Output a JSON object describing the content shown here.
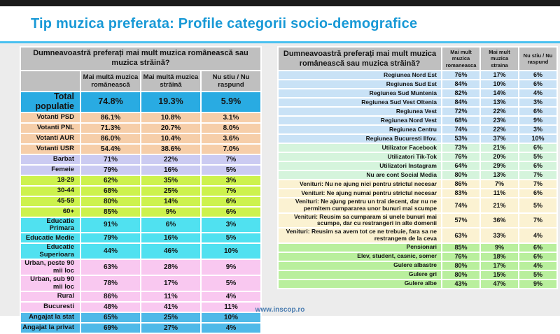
{
  "title": "Tip muzica preferata: Profile categorii socio-demografice",
  "footer": {
    "url": "www.inscop.ro"
  },
  "colors": {
    "title_blue": "#1899d6",
    "underline_cyan": "#49c1f0",
    "header_gray": "#bfbfbf",
    "total_row_blue": "#29abe2"
  },
  "chart_data": [
    {
      "type": "table",
      "name": "left",
      "question": "Dumneavoastră preferați mai mult muzica românească sau muzica străină?",
      "columns": [
        "Mai multă muzica românească",
        "Mai multă muzica străină",
        "Nu stiu / Nu raspund"
      ],
      "groups": [
        {
          "color": "#29abe2",
          "rows": [
            {
              "label": "Total populatie",
              "values": [
                "74.8%",
                "19.3%",
                "5.9%"
              ]
            }
          ]
        },
        {
          "color": "#f6cea9",
          "rows": [
            {
              "label": "Votanti PSD",
              "values": [
                "86.1%",
                "10.8%",
                "3.1%"
              ]
            },
            {
              "label": "Votanti PNL",
              "values": [
                "71.3%",
                "20.7%",
                "8.0%"
              ]
            },
            {
              "label": "Votanti AUR",
              "values": [
                "86.0%",
                "10.4%",
                "3.6%"
              ]
            },
            {
              "label": "Votanti USR",
              "values": [
                "54.4%",
                "38.6%",
                "7.0%"
              ]
            }
          ]
        },
        {
          "color": "#cbcbf2",
          "rows": [
            {
              "label": "Barbat",
              "values": [
                "71%",
                "22%",
                "7%"
              ]
            },
            {
              "label": "Femeie",
              "values": [
                "79%",
                "16%",
                "5%"
              ]
            }
          ]
        },
        {
          "color": "#cdf24d",
          "rows": [
            {
              "label": "18-29",
              "values": [
                "62%",
                "35%",
                "3%"
              ]
            },
            {
              "label": "30-44",
              "values": [
                "68%",
                "25%",
                "7%"
              ]
            },
            {
              "label": "45-59",
              "values": [
                "80%",
                "14%",
                "6%"
              ]
            },
            {
              "label": "60+",
              "values": [
                "85%",
                "9%",
                "6%"
              ]
            }
          ]
        },
        {
          "color": "#50e1f0",
          "rows": [
            {
              "label": "Educatie Primara",
              "values": [
                "91%",
                "6%",
                "3%"
              ]
            },
            {
              "label": "Educatie Medie",
              "values": [
                "79%",
                "16%",
                "5%"
              ]
            },
            {
              "label": "Educatie Superioara",
              "values": [
                "44%",
                "46%",
                "10%"
              ]
            }
          ]
        },
        {
          "color": "#f9c8f0",
          "rows": [
            {
              "label": "Urban, peste 90 mii loc",
              "values": [
                "63%",
                "28%",
                "9%"
              ]
            },
            {
              "label": "Urban, sub 90 mii loc",
              "values": [
                "78%",
                "17%",
                "5%"
              ]
            },
            {
              "label": "Rural",
              "values": [
                "86%",
                "11%",
                "4%"
              ]
            },
            {
              "label": "Bucuresti",
              "values": [
                "48%",
                "41%",
                "11%"
              ]
            }
          ]
        },
        {
          "color": "#4fb9e8",
          "rows": [
            {
              "label": "Angajat la stat",
              "values": [
                "65%",
                "25%",
                "10%"
              ]
            },
            {
              "label": "Angajat la privat",
              "values": [
                "69%",
                "27%",
                "4%"
              ]
            }
          ]
        }
      ]
    },
    {
      "type": "table",
      "name": "right",
      "question": "Dumneavoastră preferați mai mult muzica românească sau muzica străină?",
      "columns": [
        "Mai mult muzica romaneasca",
        "Mai mult muzica straina",
        "Nu stiu / Nu raspund"
      ],
      "groups": [
        {
          "color": "#c9e2f6",
          "rows": [
            {
              "label": "Regiunea Nord Est",
              "values": [
                "76%",
                "17%",
                "6%"
              ]
            },
            {
              "label": "Regiunea Sud Est",
              "values": [
                "84%",
                "10%",
                "6%"
              ]
            },
            {
              "label": "Regiunea Sud Muntenia",
              "values": [
                "82%",
                "14%",
                "4%"
              ]
            },
            {
              "label": "Regiunea Sud Vest Oltenia",
              "values": [
                "84%",
                "13%",
                "3%"
              ]
            },
            {
              "label": "Regiunea Vest",
              "values": [
                "72%",
                "22%",
                "6%"
              ]
            },
            {
              "label": "Regiunea Nord Vest",
              "values": [
                "68%",
                "23%",
                "9%"
              ]
            },
            {
              "label": "Regiunea Centru",
              "values": [
                "74%",
                "22%",
                "3%"
              ]
            },
            {
              "label": "Regiunea Bucuresti Ilfov.",
              "values": [
                "53%",
                "37%",
                "10%"
              ]
            }
          ]
        },
        {
          "color": "#d5f4dc",
          "rows": [
            {
              "label": "Utilizator Facebook",
              "values": [
                "73%",
                "21%",
                "6%"
              ]
            },
            {
              "label": "Utilizatori Tik-Tok",
              "values": [
                "76%",
                "20%",
                "5%"
              ]
            },
            {
              "label": "Utilizatori Instagram",
              "values": [
                "64%",
                "29%",
                "6%"
              ]
            },
            {
              "label": "Nu are cont Social Media",
              "values": [
                "80%",
                "13%",
                "7%"
              ]
            }
          ]
        },
        {
          "color": "#fbf2d2",
          "rows": [
            {
              "label": "Venituri: Nu ne ajung nici pentru strictul necesar",
              "values": [
                "86%",
                "7%",
                "7%"
              ]
            },
            {
              "label": "Venituri: Ne ajung numai pentru strictul necesar",
              "values": [
                "83%",
                "11%",
                "6%"
              ]
            },
            {
              "label": "Venituri: Ne ajung pentru un trai decent, dar nu ne permitem cumpararea unor bunuri mai scumpe",
              "values": [
                "74%",
                "21%",
                "5%"
              ]
            },
            {
              "label": "Venituri: Reusim sa cumparam si unele bunuri mai scumpe, dar cu restrangeri in alte domenii",
              "values": [
                "57%",
                "36%",
                "7%"
              ]
            },
            {
              "label": "Venituri: Reusim sa avem tot ce ne trebuie, fara sa ne restrangem de la ceva",
              "values": [
                "63%",
                "33%",
                "4%"
              ]
            }
          ]
        },
        {
          "color": "#b9ef9d",
          "rows": [
            {
              "label": "Pensionari",
              "values": [
                "85%",
                "9%",
                "6%"
              ]
            },
            {
              "label": "Elev, student, casnic, somer",
              "values": [
                "76%",
                "18%",
                "6%"
              ]
            },
            {
              "label": "Gulere albastre",
              "values": [
                "80%",
                "17%",
                "4%"
              ]
            },
            {
              "label": "Gulere gri",
              "values": [
                "80%",
                "15%",
                "5%"
              ]
            },
            {
              "label": "Gulere albe",
              "values": [
                "43%",
                "47%",
                "9%"
              ]
            }
          ]
        }
      ]
    }
  ]
}
